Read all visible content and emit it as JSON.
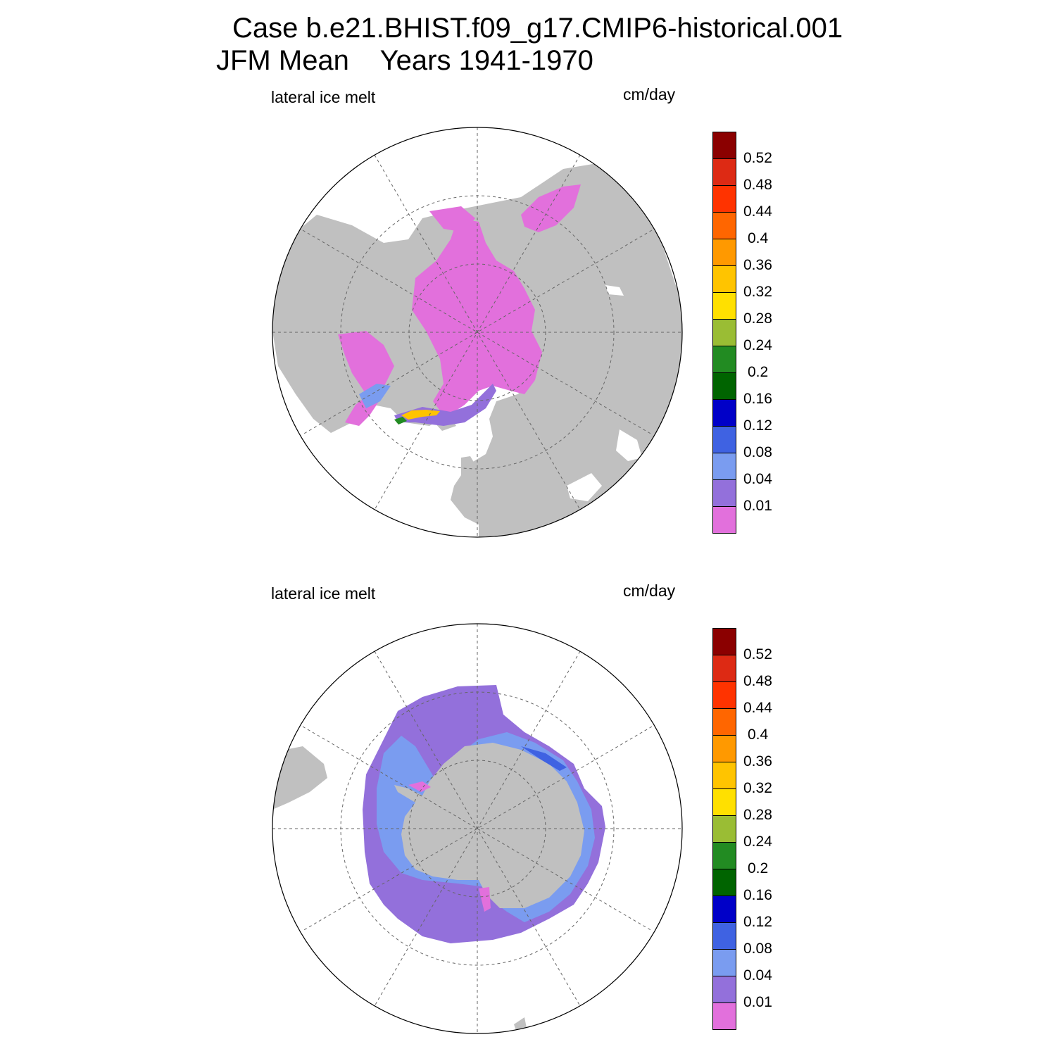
{
  "header": {
    "title_line1": "Case b.e21.BHIST.f09_g17.CMIP6-historical.001",
    "title_line2": "JFM Mean    Years 1941-1970"
  },
  "panels": [
    {
      "id": "arctic",
      "variable_label": "lateral ice melt",
      "units_label": "cm/day"
    },
    {
      "id": "antarctic",
      "variable_label": "lateral ice melt",
      "units_label": "cm/day"
    }
  ],
  "colorbar": {
    "levels": [
      "0.01",
      "0.04",
      "0.08",
      "0.12",
      "0.16",
      "0.2",
      "0.24",
      "0.28",
      "0.32",
      "0.36",
      "0.4",
      "0.44",
      "0.48",
      "0.52"
    ],
    "colors": [
      "#e270dc",
      "#9370db",
      "#7a9cf0",
      "#3f62e2",
      "#0000c8",
      "#006400",
      "#228b22",
      "#9abd34",
      "#ffe000",
      "#ffc400",
      "#ff9900",
      "#ff6600",
      "#ff3300",
      "#dd2a14",
      "#8b0000"
    ]
  },
  "map_colors": {
    "land": "#c0c0c0",
    "ocean": "#ffffff",
    "grid": "#666666"
  }
}
